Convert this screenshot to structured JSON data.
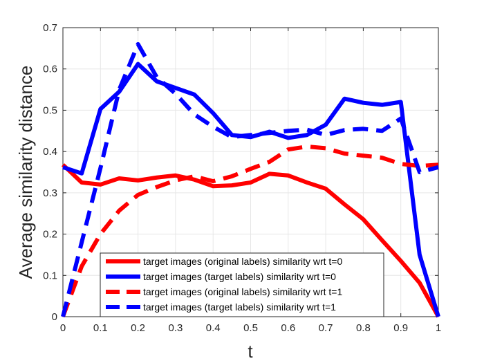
{
  "chart_data": {
    "type": "line",
    "title": "",
    "xlabel": "t",
    "ylabel": "Average similarity distance",
    "xlim": [
      0,
      1
    ],
    "ylim": [
      0,
      0.7
    ],
    "xticks": [
      0,
      0.1,
      0.2,
      0.3,
      0.4,
      0.5,
      0.6,
      0.7,
      0.8,
      0.9,
      1
    ],
    "xtick_labels": [
      "0",
      "0.1",
      "0.2",
      "0.3",
      "0.4",
      "0.5",
      "0.6",
      "0.7",
      "0.8",
      "0.9",
      "1"
    ],
    "yticks": [
      0,
      0.1,
      0.2,
      0.3,
      0.4,
      0.5,
      0.6,
      0.7
    ],
    "ytick_labels": [
      "0",
      "0.1",
      "0.2",
      "0.3",
      "0.4",
      "0.5",
      "0.6",
      "0.7"
    ],
    "grid": true,
    "legend_position": "bottom-center",
    "x": [
      0,
      0.05,
      0.1,
      0.15,
      0.2,
      0.25,
      0.3,
      0.35,
      0.4,
      0.45,
      0.5,
      0.55,
      0.6,
      0.65,
      0.7,
      0.75,
      0.8,
      0.85,
      0.9,
      0.95,
      1
    ],
    "series": [
      {
        "name": "target images (original labels) similarity wrt t=0",
        "color": "#ff0000",
        "style": "solid",
        "values": [
          0.368,
          0.325,
          0.32,
          0.335,
          0.33,
          0.337,
          0.342,
          0.332,
          0.316,
          0.318,
          0.325,
          0.346,
          0.342,
          0.325,
          0.31,
          0.272,
          0.236,
          0.185,
          0.135,
          0.082,
          0.0
        ]
      },
      {
        "name": "target images (target labels) similarity wrt t=0",
        "color": "#0000ff",
        "style": "solid",
        "values": [
          0.362,
          0.347,
          0.503,
          0.545,
          0.612,
          0.57,
          0.554,
          0.538,
          0.493,
          0.44,
          0.435,
          0.448,
          0.433,
          0.44,
          0.465,
          0.528,
          0.518,
          0.513,
          0.52,
          0.15,
          0.0
        ]
      },
      {
        "name": "target images (original labels) similarity wrt t=1",
        "color": "#ff0000",
        "style": "dashed",
        "values": [
          0.0,
          0.122,
          0.2,
          0.257,
          0.295,
          0.314,
          0.33,
          0.34,
          0.328,
          0.34,
          0.358,
          0.375,
          0.405,
          0.412,
          0.408,
          0.395,
          0.39,
          0.385,
          0.37,
          0.365,
          0.368
        ]
      },
      {
        "name": "target images (target labels) similarity wrt t=1",
        "color": "#0000ff",
        "style": "dashed",
        "values": [
          0.0,
          0.18,
          0.36,
          0.55,
          0.66,
          0.58,
          0.54,
          0.49,
          0.46,
          0.435,
          0.44,
          0.445,
          0.45,
          0.453,
          0.44,
          0.452,
          0.455,
          0.45,
          0.48,
          0.35,
          0.362
        ]
      }
    ]
  }
}
